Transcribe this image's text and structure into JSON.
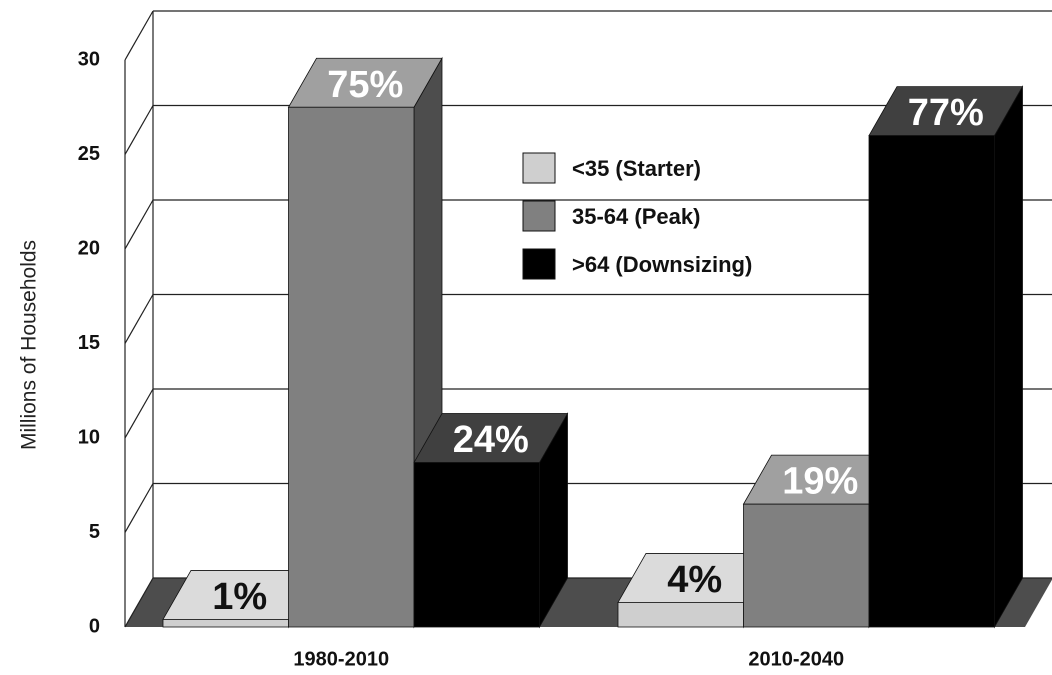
{
  "chart_data": {
    "type": "bar3d",
    "y_label": "Millions of Households",
    "categories": [
      "1980-2010",
      "2010-2040"
    ],
    "series": [
      {
        "name": "<35 (Starter)",
        "color": "#cfcfcf",
        "values": [
          0.4,
          1.3
        ],
        "labels": [
          "1%",
          "4%"
        ],
        "label_color": "#111111"
      },
      {
        "name": "35-64 (Peak)",
        "color": "#808080",
        "values": [
          27.5,
          6.5
        ],
        "labels": [
          "75%",
          "19%"
        ],
        "label_color": "#ffffff"
      },
      {
        "name": ">64 (Downsizing)",
        "color": "#000000",
        "values": [
          8.7,
          26.0
        ],
        "labels": [
          "24%",
          "77%"
        ],
        "label_color": "#ffffff"
      }
    ],
    "ylim": [
      0,
      30
    ],
    "yticks": [
      0,
      5,
      10,
      15,
      20,
      25,
      30
    ],
    "grid": true,
    "legend": "upper center"
  }
}
